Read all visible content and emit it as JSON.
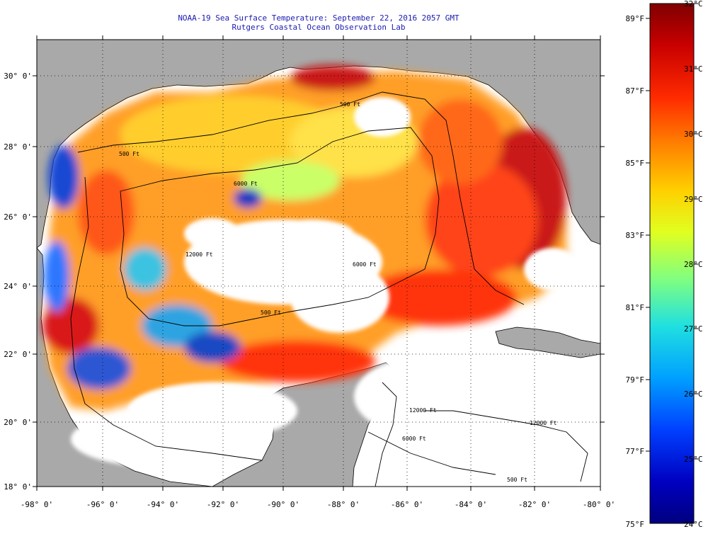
{
  "title": {
    "line1": "NOAA-19 Sea Surface Temperature:  September 22, 2016 2057 GMT",
    "line2": "Rutgers Coastal Ocean Observation Lab"
  },
  "map": {
    "lat_labels": [
      "30° 0'",
      "28° 0'",
      "26° 0'",
      "24° 0'",
      "22° 0'",
      "20° 0'",
      "18° 0'"
    ],
    "lon_labels": [
      "-98° 0'",
      "-96° 0'",
      "-94° 0'",
      "-92° 0'",
      "-90° 0'",
      "-88° 0'",
      "-86° 0'",
      "-84° 0'",
      "-82° 0'",
      "-80° 0'"
    ],
    "contour_labels": [
      "500 Ft",
      "500 Ft",
      "6000 Ft",
      "12000 Ft",
      "6000 Ft",
      "500 Ft",
      "12000 Ft",
      "12000 Ft",
      "500 Ft",
      "6000 Ft"
    ],
    "colors": {
      "land": "#a9a9a9",
      "cloud_mask": "#ffffff",
      "contour": "#000000",
      "title": "#1a1ab0"
    }
  },
  "colorbar": {
    "celsius_labels": [
      "32°C",
      "31°C",
      "30°C",
      "29°C",
      "28°C",
      "27°C",
      "26°C",
      "25°C",
      "24°C"
    ],
    "fahrenheit_labels": [
      "89°F",
      "87°F",
      "85°F",
      "83°F",
      "81°F",
      "79°F",
      "77°F",
      "75°F"
    ],
    "scale_colors": [
      "#7f0000",
      "#c80000",
      "#ff2a00",
      "#ff8000",
      "#ffd000",
      "#e0ff20",
      "#80ff80",
      "#20e0e0",
      "#00a0ff",
      "#0040ff",
      "#0000c0",
      "#00007f"
    ]
  }
}
